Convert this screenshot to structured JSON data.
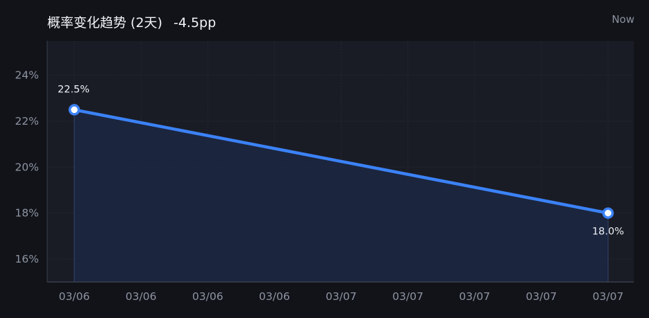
{
  "header": {
    "title": "概率变化趋势 (2天)",
    "delta": "-4.5pp",
    "now_label": "Now"
  },
  "colors": {
    "background": "#111318",
    "plot_background": "#1a1c25",
    "line": "#3b82f6",
    "area_fill": "#1c2740",
    "grid": "#232734",
    "axis": "#3a3f4d",
    "tick_text": "#8e94a3"
  },
  "chart_data": {
    "type": "area",
    "title": "概率变化趋势 (2天)",
    "xlabel": "",
    "ylabel": "",
    "x_tick_labels": [
      "03/06",
      "03/06",
      "03/06",
      "03/06",
      "03/07",
      "03/07",
      "03/07",
      "03/07",
      "03/07"
    ],
    "y_tick_labels": [
      "16%",
      "18%",
      "20%",
      "22%",
      "24%"
    ],
    "y_ticks": [
      16,
      18,
      20,
      22,
      24
    ],
    "ylim": [
      15.0,
      25.5
    ],
    "grid": true,
    "series": [
      {
        "values": [
          {
            "x": "03/06",
            "y": 22.5,
            "label": "22.5%"
          },
          {
            "x": "03/07",
            "y": 18.0,
            "label": "18.0%"
          }
        ]
      }
    ]
  }
}
